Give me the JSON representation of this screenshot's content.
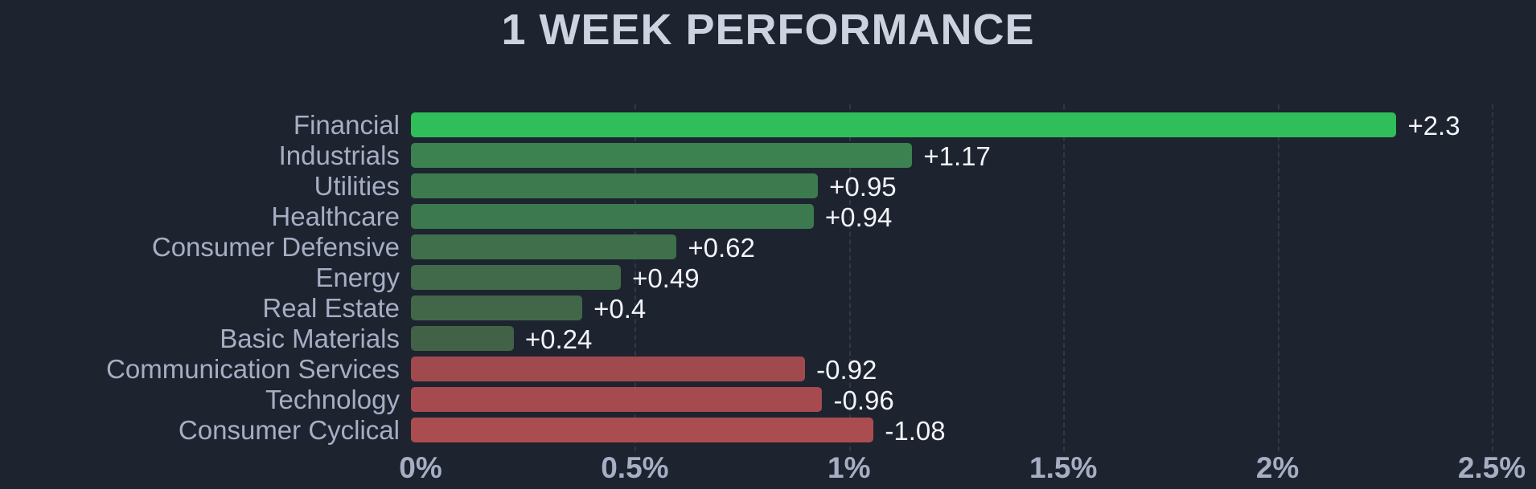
{
  "title": "1 WEEK PERFORMANCE",
  "chart_data": {
    "type": "bar",
    "orientation": "horizontal",
    "title": "1 WEEK PERFORMANCE",
    "categories": [
      "Financial",
      "Industrials",
      "Utilities",
      "Healthcare",
      "Consumer Defensive",
      "Energy",
      "Real Estate",
      "Basic Materials",
      "Communication Services",
      "Technology",
      "Consumer Cyclical"
    ],
    "values": [
      2.3,
      1.17,
      0.95,
      0.94,
      0.62,
      0.49,
      0.4,
      0.24,
      -0.92,
      -0.96,
      -1.08
    ],
    "value_labels": [
      "+2.3",
      "+1.17",
      "+0.95",
      "+0.94",
      "+0.62",
      "+0.49",
      "+0.4",
      "+0.24",
      "-0.92",
      "-0.96",
      "-1.08"
    ],
    "bar_colors": [
      "#2fbe5a",
      "#3c8150",
      "#3d7a4e",
      "#3d794e",
      "#3f6f4b",
      "#406a4a",
      "#416748",
      "#426247",
      "#a14a4e",
      "#a54b4f",
      "#aa4d51"
    ],
    "xlim": [
      0,
      2.5
    ],
    "x_ticks": [
      "0%",
      "0.5%",
      "1%",
      "1.5%",
      "2%",
      "2.5%"
    ],
    "x_tick_values": [
      0,
      0.5,
      1,
      1.5,
      2,
      2.5
    ],
    "bars_use_absolute_value": true,
    "grid": "vertical-dashed",
    "legend": "none"
  },
  "colors": {
    "background": "#1e2330",
    "title": "#ccd2df",
    "category_label": "#a6aec3",
    "value_label": "#f2f4f8",
    "axis_label": "#a6aec3",
    "gridline": "rgba(166,174,195,0.14)",
    "positive_accent": "#2fbe5a",
    "negative_accent": "#a54b4f"
  }
}
